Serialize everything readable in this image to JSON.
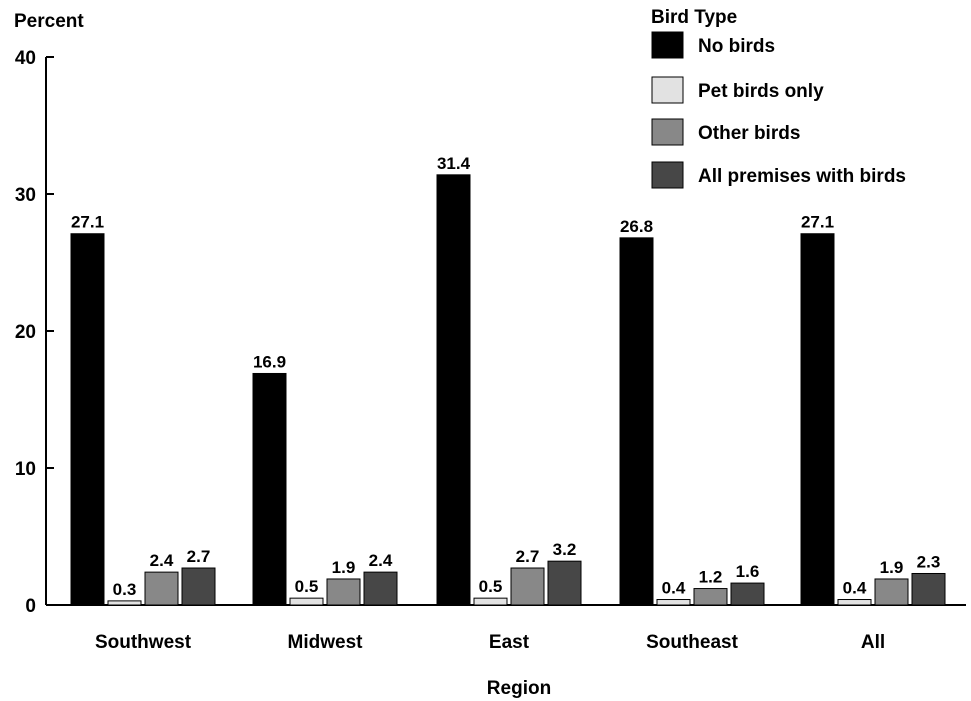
{
  "chart_data": {
    "type": "bar",
    "ylabel": "Percent",
    "xlabel": "Region",
    "ylim": [
      0,
      40
    ],
    "yticks": [
      0,
      10,
      20,
      30,
      40
    ],
    "grid": false,
    "legend_title": "Bird Type",
    "legend_position": "top-right",
    "categories": [
      "Southwest",
      "Midwest",
      "East",
      "Southeast",
      "All"
    ],
    "series": [
      {
        "name": "No birds",
        "color": "#000000",
        "values": [
          27.1,
          16.9,
          31.4,
          26.8,
          27.1
        ],
        "labels": [
          "27.1",
          "16.9",
          "31.4",
          "26.8",
          "27.1"
        ]
      },
      {
        "name": "Pet birds only",
        "color": "#e2e2e2",
        "values": [
          0.3,
          0.5,
          0.5,
          0.4,
          0.4
        ],
        "labels": [
          "0.3",
          "0.5",
          "0.5",
          "0.4",
          "0.4"
        ]
      },
      {
        "name": "Other birds",
        "color": "#888888",
        "values": [
          2.4,
          1.9,
          2.7,
          1.2,
          1.9
        ],
        "labels": [
          "2.4",
          "1.9",
          "2.7",
          "1.2",
          "1.9"
        ]
      },
      {
        "name": "All premises with birds",
        "color": "#474747",
        "values": [
          2.7,
          2.4,
          3.2,
          1.6,
          2.3
        ],
        "labels": [
          "2.7",
          "2.4",
          "3.2",
          "1.6",
          "2.3"
        ]
      }
    ]
  }
}
